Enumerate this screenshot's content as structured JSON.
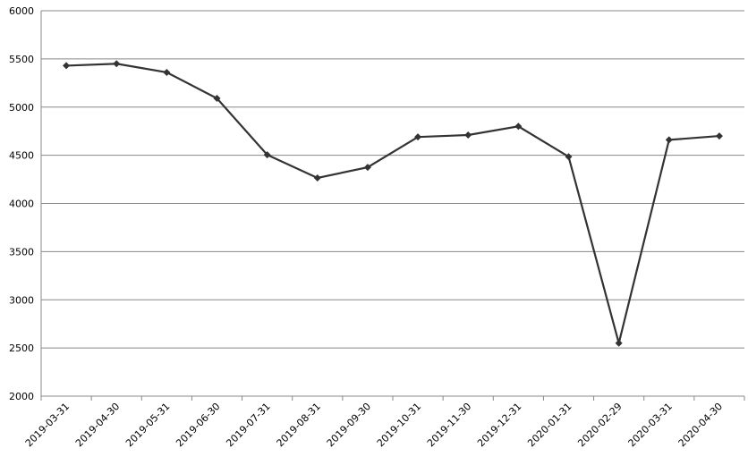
{
  "chart_data": {
    "type": "line",
    "categories": [
      "2019-03-31",
      "2019-04-30",
      "2019-05-31",
      "2019-06-30",
      "2019-07-31",
      "2019-08-31",
      "2019-09-30",
      "2019-10-31",
      "2019-11-30",
      "2019-12-31",
      "2020-01-31",
      "2020-02-29",
      "2020-03-31",
      "2020-04-30"
    ],
    "values": [
      5430,
      5450,
      5360,
      5090,
      4505,
      4265,
      4375,
      4690,
      4710,
      4800,
      4485,
      2550,
      4660,
      4700
    ],
    "color": "#333333",
    "ylim": [
      2000,
      6000
    ],
    "yticks": [
      2000,
      2500,
      3000,
      3500,
      4000,
      4500,
      5000,
      5500,
      6000
    ],
    "grid": true
  }
}
